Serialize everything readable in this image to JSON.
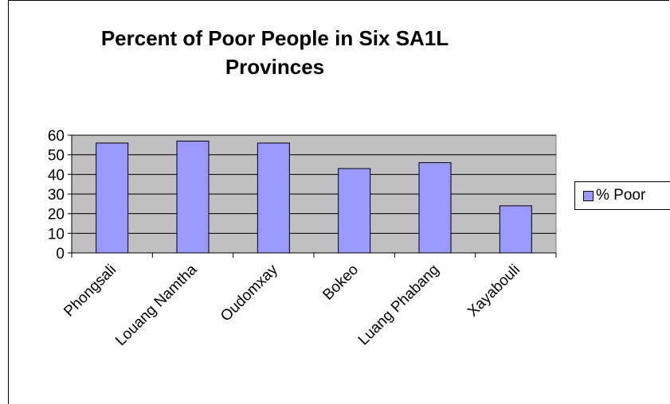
{
  "chart_data": {
    "type": "bar",
    "title": "Percent of Poor People in Six SA1L\nProvinces",
    "categories": [
      "Phongsali",
      "Louang Namtha",
      "Oudomxay",
      "Bokeo",
      "Luang Phabang",
      "Xayabouli"
    ],
    "series": [
      {
        "name": "% Poor",
        "values": [
          56,
          57,
          56,
          43,
          46,
          24
        ]
      }
    ],
    "ylim": [
      0,
      60
    ],
    "yticks": [
      0,
      10,
      20,
      30,
      40,
      50,
      60
    ],
    "grid": true,
    "legend": "right",
    "colors": {
      "bar": "#9999ff",
      "plot_bg": "#c0c0c0",
      "gridline": "#000000"
    }
  }
}
